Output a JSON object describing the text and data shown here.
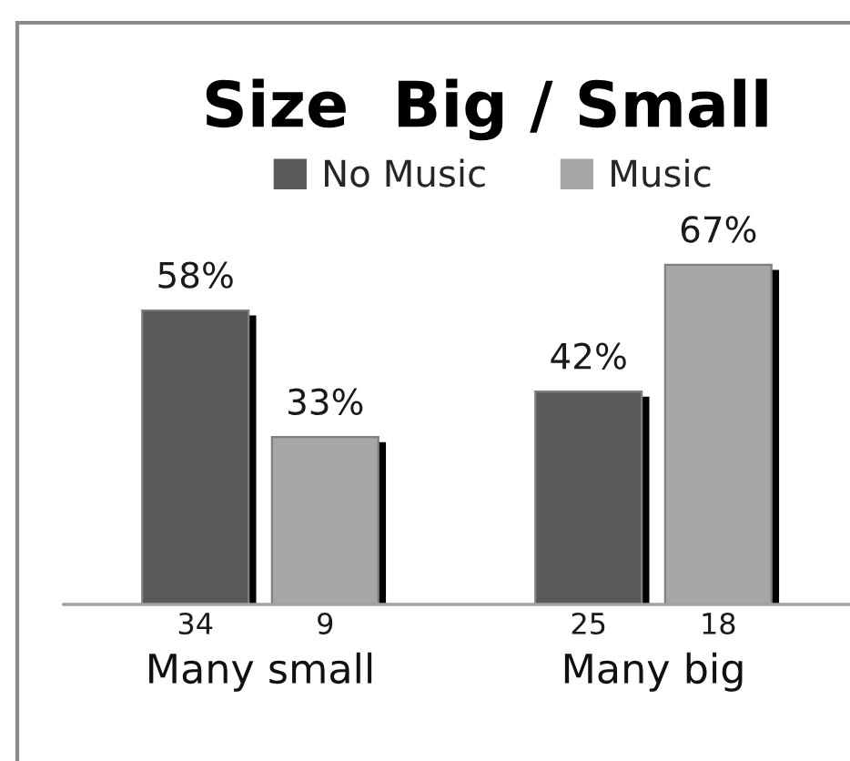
{
  "chart_data": {
    "type": "bar",
    "title": "Size  Big / Small",
    "categories": [
      "Many small",
      "Many big"
    ],
    "series": [
      {
        "name": "No Music",
        "color": "#595959",
        "values": [
          58,
          42
        ],
        "value_labels": [
          "58%",
          "42%"
        ]
      },
      {
        "name": "Music",
        "color": "#a6a6a6",
        "values": [
          33,
          67
        ],
        "value_labels": [
          "33%",
          "67%"
        ]
      }
    ],
    "annotations": [
      "34",
      "9",
      "25",
      "18"
    ],
    "tick_labels": "x",
    "legend": "top",
    "grid": false
  }
}
